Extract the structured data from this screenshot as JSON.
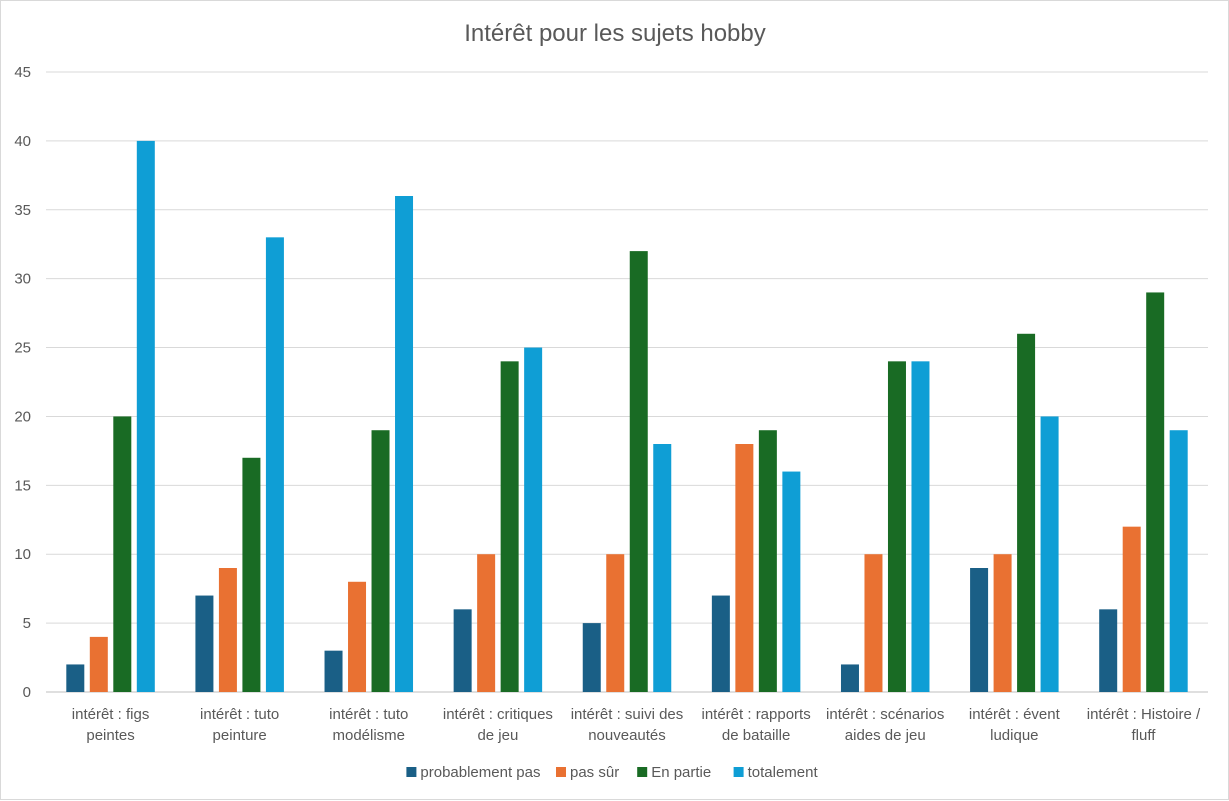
{
  "chart_data": {
    "type": "bar",
    "title": "Intérêt pour les sujets hobby",
    "xlabel": "",
    "ylabel": "",
    "ylim": [
      0,
      45
    ],
    "yticks": [
      "0",
      "5",
      "10",
      "15",
      "20",
      "25",
      "30",
      "35",
      "40",
      "45"
    ],
    "grid": true,
    "legend_position": "bottom",
    "categories": [
      [
        "intérêt : figs",
        "peintes"
      ],
      [
        "intérêt : tuto",
        "peinture"
      ],
      [
        "intérêt : tuto",
        "modélisme"
      ],
      [
        "intérêt : critiques",
        "de jeu"
      ],
      [
        "intérêt : suivi des",
        "nouveautés"
      ],
      [
        "intérêt : rapports",
        "de bataille"
      ],
      [
        "intérêt : scénarios",
        "aides de jeu"
      ],
      [
        "intérêt : évent",
        "ludique"
      ],
      [
        "intérêt : Histoire /",
        "fluff"
      ]
    ],
    "series": [
      {
        "name": "probablement pas",
        "color": "#1a5f86",
        "values": [
          2,
          7,
          3,
          6,
          5,
          7,
          2,
          9,
          6
        ]
      },
      {
        "name": "pas sûr",
        "color": "#e97132",
        "values": [
          4,
          9,
          8,
          10,
          10,
          18,
          10,
          10,
          12
        ]
      },
      {
        "name": "En partie",
        "color": "#196b24",
        "values": [
          20,
          17,
          19,
          24,
          32,
          19,
          24,
          26,
          29
        ]
      },
      {
        "name": "totalement",
        "color": "#0f9ed5",
        "values": [
          40,
          33,
          36,
          25,
          18,
          16,
          24,
          20,
          19
        ]
      }
    ]
  }
}
